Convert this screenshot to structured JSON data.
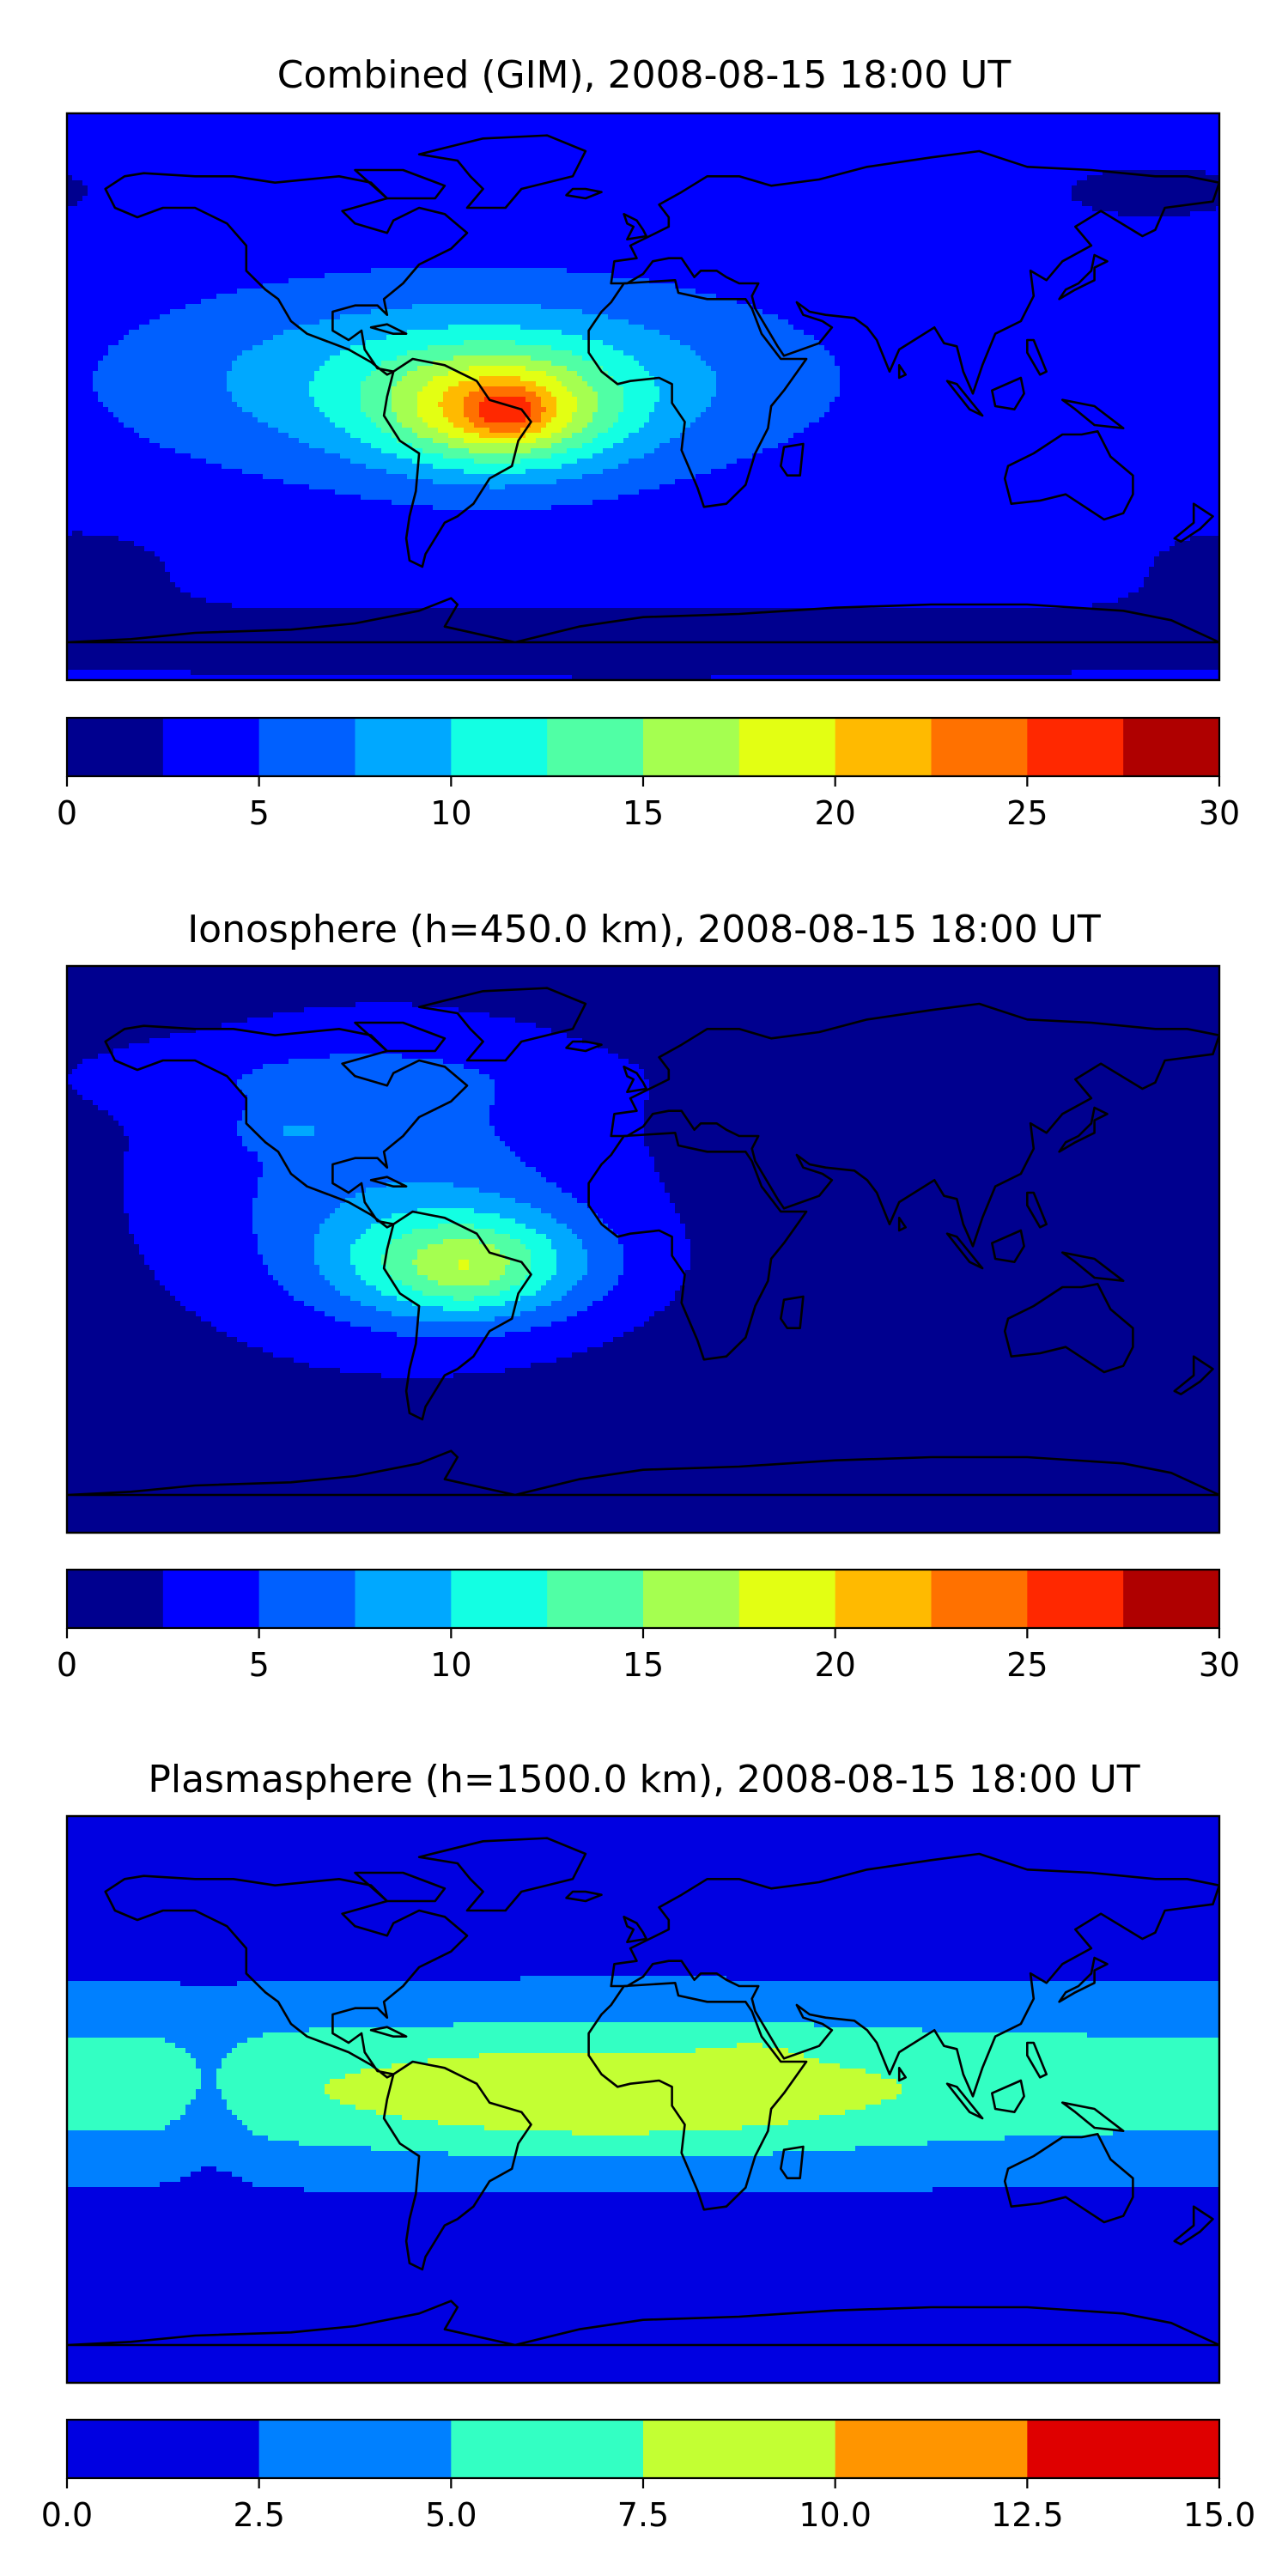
{
  "chart_data": [
    {
      "type": "heatmap",
      "title": "Combined (GIM), 2008-08-15 18:00 UT",
      "colorbar": {
        "levels": [
          0,
          2.5,
          5,
          7.5,
          10,
          12.5,
          15,
          17.5,
          20,
          22.5,
          25,
          27.5,
          30
        ],
        "colors": [
          "#00008f",
          "#0000ff",
          "#0060ff",
          "#00a8ff",
          "#13ffe3",
          "#50ffa5",
          "#a5ff50",
          "#e3ff13",
          "#ffba00",
          "#ff7100",
          "#ff2800",
          "#af0000"
        ],
        "tick_labels": [
          "0",
          "5",
          "10",
          "15",
          "20",
          "25",
          "30"
        ],
        "tick_values": [
          0,
          5,
          10,
          15,
          20,
          25,
          30
        ],
        "vmin": 0,
        "vmax": 30
      },
      "map_background_value": 3.5,
      "blobs": [
        {
          "name": "south-polar-low",
          "lon": 0,
          "lat": -78,
          "slon": 260,
          "slat": 12,
          "amp": -2.4
        },
        {
          "name": "pacific-low",
          "lon": -175,
          "lat": -55,
          "slon": 40,
          "slat": 20,
          "amp": -1.5
        },
        {
          "name": "east-asia-low",
          "lon": 160,
          "lat": 65,
          "slon": 35,
          "slat": 10,
          "amp": -1.8
        },
        {
          "name": "atlantic-broad",
          "lon": -55,
          "lat": 5,
          "slon": 90,
          "slat": 28,
          "amp": 8
        },
        {
          "name": "brazil-core",
          "lon": -45,
          "lat": -5,
          "slon": 35,
          "slat": 18,
          "amp": 12
        },
        {
          "name": "brazil-peak",
          "lon": -42,
          "lat": -5,
          "slon": 12,
          "slat": 8,
          "amp": 5
        },
        {
          "name": "maritime-dip",
          "lon": 125,
          "lat": 0,
          "slon": 15,
          "slat": 10,
          "amp": -1
        }
      ]
    },
    {
      "type": "heatmap",
      "title": "Ionosphere  (h=450.0 km), 2008-08-15 18:00 UT",
      "colorbar": {
        "levels": [
          0,
          2.5,
          5,
          7.5,
          10,
          12.5,
          15,
          17.5,
          20,
          22.5,
          25,
          27.5,
          30
        ],
        "colors": [
          "#00008f",
          "#0000ff",
          "#0060ff",
          "#00a8ff",
          "#13ffe3",
          "#50ffa5",
          "#a5ff50",
          "#e3ff13",
          "#ffba00",
          "#ff7100",
          "#ff2800",
          "#af0000"
        ],
        "tick_labels": [
          "0",
          "5",
          "10",
          "15",
          "20",
          "25",
          "30"
        ],
        "tick_values": [
          0,
          5,
          10,
          15,
          20,
          25,
          30
        ],
        "vmin": 0,
        "vmax": 30
      },
      "map_background_value": 1.5,
      "blobs": [
        {
          "name": "western-hemisphere",
          "lon": -80,
          "lat": 20,
          "slon": 65,
          "slat": 45,
          "amp": 5
        },
        {
          "name": "north-pacific-band",
          "lon": -100,
          "lat": 55,
          "slon": 80,
          "slat": 12,
          "amp": 2
        },
        {
          "name": "south-america-core",
          "lon": -55,
          "lat": -5,
          "slon": 40,
          "slat": 18,
          "amp": 11
        },
        {
          "name": "brazil-peak",
          "lon": -55,
          "lat": -7,
          "slon": 15,
          "slat": 10,
          "amp": 2
        },
        {
          "name": "us-pocket",
          "lon": -110,
          "lat": 38,
          "slon": 15,
          "slat": 6,
          "amp": 2.5
        }
      ]
    },
    {
      "type": "heatmap",
      "title": "Plasmasphere (h=1500.0 km), 2008-08-15 18:00 UT",
      "colorbar": {
        "levels": [
          0,
          2.5,
          5,
          7.5,
          10,
          12.5,
          15
        ],
        "colors": [
          "#0000e1",
          "#0080ff",
          "#33ffc3",
          "#c3ff33",
          "#ff9500",
          "#df0000"
        ],
        "tick_labels": [
          "0.0",
          "2.5",
          "5.0",
          "7.5",
          "10.0",
          "12.5",
          "15.0"
        ],
        "tick_values": [
          0,
          2.5,
          5,
          7.5,
          10,
          12.5,
          15
        ],
        "vmin": 0,
        "vmax": 15
      },
      "map_background_value": 1.2,
      "blobs": [
        {
          "name": "equatorial-band",
          "lon": 0,
          "lat": 5,
          "slon": 700,
          "slat": 28,
          "amp": 5.3
        },
        {
          "name": "africa-enhancement",
          "lon": -10,
          "lat": 0,
          "slon": 85,
          "slat": 18,
          "amp": 3.5
        },
        {
          "name": "arabia-pocket",
          "lon": 35,
          "lat": 15,
          "slon": 15,
          "slat": 8,
          "amp": 1
        },
        {
          "name": "pacific-dip",
          "lon": -135,
          "lat": 0,
          "slon": 12,
          "slat": 25,
          "amp": -1.8
        }
      ]
    }
  ]
}
